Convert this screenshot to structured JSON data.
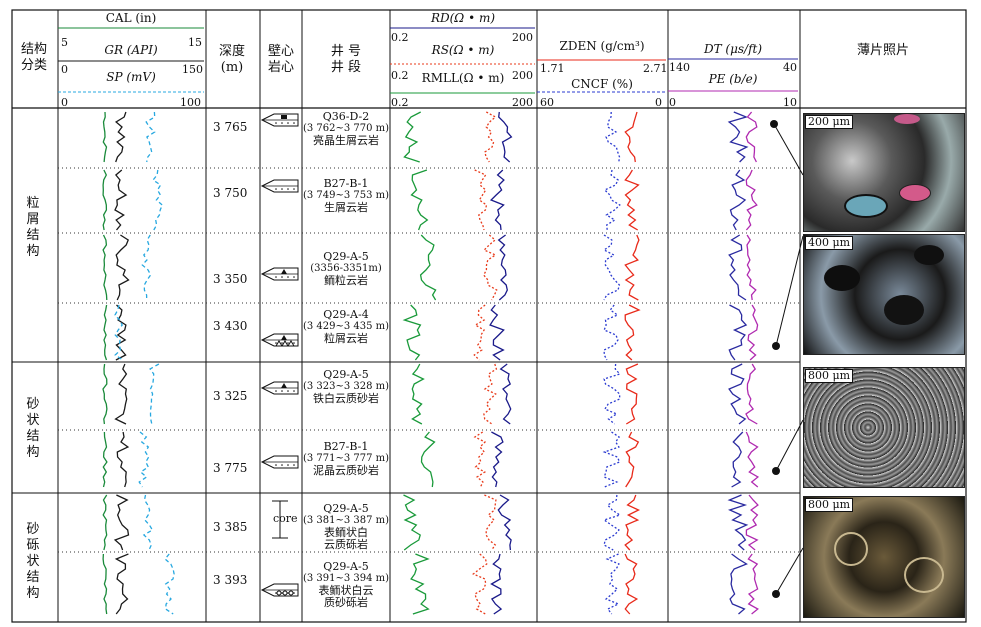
{
  "header": {
    "col_structure": "结构\n分类",
    "cal_label": "CAL (in)",
    "cal_min": "5",
    "cal_max": "15",
    "gr_label": "GR (API)",
    "gr_min": "0",
    "gr_max": "150",
    "sp_label": "SP (mV)",
    "sp_min": "0",
    "sp_max": "100",
    "depth_label": "深度\n(m)",
    "core_label": "壁心\n岩心",
    "well_label": "井 号\n井 段",
    "rd_label": "RD(Ω • m)",
    "rd_min": "0.2",
    "rd_max": "200",
    "rs_label": "RS(Ω • m)",
    "rs_min": "0.2",
    "rs_max": "200",
    "rmll_label": "RMLL(Ω • m)",
    "rmll_min": "0.2",
    "rmll_max": "200",
    "zden_label": "ZDEN (g/cm³)",
    "zden_min": "1.71",
    "zden_max": "2.71",
    "cncf_label": "CNCF (%)",
    "cncf_min": "60",
    "cncf_max": "0",
    "dt_label": "DT (μs/ft)",
    "dt_min": "140",
    "dt_max": "40",
    "pe_label": "PE (b/e)",
    "pe_min": "0",
    "pe_max": "10",
    "photo_label": "薄片照片"
  },
  "groups": [
    {
      "name": "粒\n屑\n结\n构"
    },
    {
      "name": "砂\n状\n结\n构"
    },
    {
      "name": "砂\n砾\n状\n结\n构"
    }
  ],
  "rows": [
    {
      "depth": "3 765",
      "well": "Q36-D-2",
      "interval": "(3 762~3 770 m)",
      "lith": "亮晶生屑云岩"
    },
    {
      "depth": "3 750",
      "well": "B27-B-1",
      "interval": "(3 749~3 753 m)",
      "lith": "生屑云岩"
    },
    {
      "depth": "3 350",
      "well": "Q29-A-5",
      "interval": "(3356-3351m)",
      "lith": "鲕粒云岩"
    },
    {
      "depth": "3 430",
      "well": "Q29-A-4",
      "interval": "(3 429~3 435 m)",
      "lith": "粒屑云岩"
    },
    {
      "depth": "3 325",
      "well": "Q29-A-5",
      "interval": "(3 323~3 328 m)",
      "lith": "铁白云质砂岩"
    },
    {
      "depth": "3 775",
      "well": "B27-B-1",
      "interval": "(3 771~3 777 m)",
      "lith": "泥晶云质砂岩"
    },
    {
      "depth": "3 385",
      "well": "Q29-A-5",
      "interval": "(3 381~3 387 m)",
      "lith": "表鲕状白\n云质砾岩"
    },
    {
      "depth": "3 393",
      "well": "Q29-A-5",
      "interval": "(3 391~3 394 m)",
      "lith": "表鲕状白云\n质砂砾岩"
    }
  ],
  "core_text": "core",
  "photos": [
    {
      "scale": "200 μm"
    },
    {
      "scale": "400 μm"
    },
    {
      "scale": "800 μm"
    },
    {
      "scale": "800 μm"
    }
  ],
  "colors": {
    "cal": "#1a8a3a",
    "gr": "#1a1a1a",
    "sp": "#27a8e0",
    "rd": "#1a1a8a",
    "rs": "#e83a1a",
    "rmll": "#1a9a3a",
    "zden": "#e82a1a",
    "cncf": "#2a3ad0",
    "dt": "#2a2aa0",
    "pe": "#b02ab0"
  }
}
